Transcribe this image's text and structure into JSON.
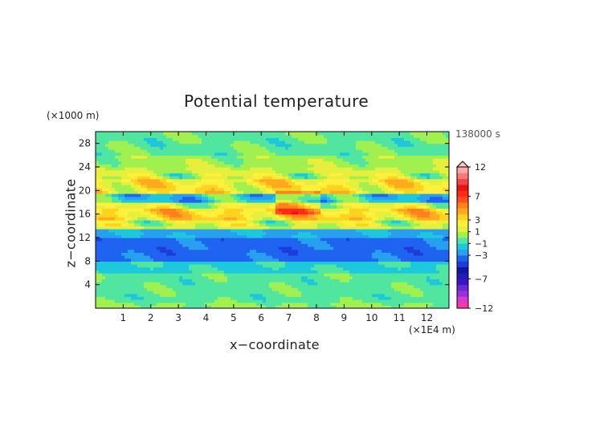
{
  "chart_data": {
    "type": "heatmap",
    "title": "Potential temperature",
    "xlabel": "x−coordinate",
    "ylabel": "z−coordinate",
    "x_unit": "(×1E4 m)",
    "y_unit": "(×1000 m)",
    "time_label": "138000 s",
    "xlim": [
      0,
      12.8
    ],
    "ylim": [
      0,
      30
    ],
    "x_ticks": [
      "1",
      "2",
      "3",
      "4",
      "5",
      "6",
      "7",
      "8",
      "9",
      "10",
      "11",
      "12"
    ],
    "x_tick_values": [
      1,
      2,
      3,
      4,
      5,
      6,
      7,
      8,
      9,
      10,
      11,
      12
    ],
    "y_ticks": [
      "4",
      "8",
      "12",
      "16",
      "20",
      "24",
      "28"
    ],
    "y_tick_values": [
      4,
      8,
      12,
      16,
      20,
      24,
      28
    ],
    "colorbar": {
      "levels": [
        -12,
        -11,
        -10,
        -9,
        -8,
        -7,
        -6,
        -5,
        -4,
        -3,
        -2,
        -1,
        0,
        1,
        2,
        3,
        4,
        5,
        6,
        7,
        8,
        9,
        10,
        11,
        12
      ],
      "tick_labels": [
        "12",
        "7",
        "3",
        "1",
        "−1",
        "−3",
        "−7",
        "−12"
      ],
      "tick_values": [
        12,
        7,
        3,
        1,
        -1,
        -3,
        -7,
        -12
      ],
      "colors": [
        "#ff33aa",
        "#d23cd2",
        "#9b30d8",
        "#6a28d8",
        "#3c14c8",
        "#1e1eb4",
        "#1414a0",
        "#1e3cdc",
        "#1e64f0",
        "#28a0f0",
        "#1ec8dc",
        "#50e6a0",
        "#a0f050",
        "#e6f03c",
        "#fff03c",
        "#ffd21e",
        "#ffaa1e",
        "#ff821e",
        "#ff4e1e",
        "#ff2a14",
        "#e61414",
        "#f04646",
        "#ff7878",
        "#ffaaaa",
        "#ffc8c8"
      ]
    },
    "bands": [
      {
        "z_range": [
          0,
          1
        ],
        "value": 0.2
      },
      {
        "z_range": [
          1,
          6
        ],
        "value": -0.4
      },
      {
        "z_range": [
          6,
          8
        ],
        "value": -1.2
      },
      {
        "z_range": [
          8,
          12
        ],
        "value": -3.4
      },
      {
        "z_range": [
          12,
          13.5
        ],
        "value": -2.2
      },
      {
        "z_range": [
          13.5,
          15
        ],
        "value": 1.2
      },
      {
        "z_range": [
          15,
          17
        ],
        "value": 3.2
      },
      {
        "z_range": [
          17,
          18
        ],
        "value": 1.4
      },
      {
        "z_range": [
          18,
          19.5
        ],
        "value": -1.6
      },
      {
        "z_range": [
          19.5,
          22
        ],
        "value": 2.6
      },
      {
        "z_range": [
          22,
          24
        ],
        "value": 1.1
      },
      {
        "z_range": [
          24,
          26
        ],
        "value": 0.5
      },
      {
        "z_range": [
          26,
          30
        ],
        "value": -0.3
      }
    ]
  }
}
